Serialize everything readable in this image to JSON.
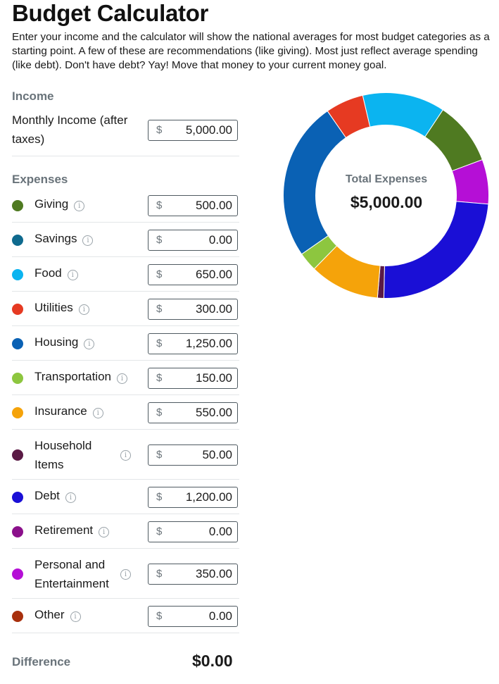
{
  "title": "Budget Calculator",
  "intro": "Enter your income and the calculator will show the national averages for most budget categories as a starting point. A few of these are recommendations (like giving). Most just reflect average spending (like debt). Don't have debt? Yay! Move that money to your current money goal.",
  "income": {
    "section_label": "Income",
    "label": "Monthly Income (after taxes)",
    "currency": "$",
    "value": "5,000.00"
  },
  "expenses": {
    "section_label": "Expenses",
    "info_glyph": "i",
    "items": [
      {
        "label": "Giving",
        "value": "500.00",
        "amount": 500,
        "color": "#4f7a21"
      },
      {
        "label": "Savings",
        "value": "0.00",
        "amount": 0,
        "color": "#0f6a8e"
      },
      {
        "label": "Food",
        "value": "650.00",
        "amount": 650,
        "color": "#0bb4f0"
      },
      {
        "label": "Utilities",
        "value": "300.00",
        "amount": 300,
        "color": "#e63a22"
      },
      {
        "label": "Housing",
        "value": "1,250.00",
        "amount": 1250,
        "color": "#0a61b4"
      },
      {
        "label": "Transportation",
        "value": "150.00",
        "amount": 150,
        "color": "#8dc63f"
      },
      {
        "label": "Insurance",
        "value": "550.00",
        "amount": 550,
        "color": "#f5a30a"
      },
      {
        "label": "Household Items",
        "value": "50.00",
        "amount": 50,
        "color": "#5a1a45"
      },
      {
        "label": "Debt",
        "value": "1,200.00",
        "amount": 1200,
        "color": "#1a0fd6"
      },
      {
        "label": "Retirement",
        "value": "0.00",
        "amount": 0,
        "color": "#8b108b"
      },
      {
        "label": "Personal and Entertainment",
        "value": "350.00",
        "amount": 350,
        "color": "#b50fd6"
      },
      {
        "label": "Other",
        "value": "0.00",
        "amount": 0,
        "color": "#a8300d"
      }
    ]
  },
  "difference": {
    "label": "Difference",
    "value": "$0.00"
  },
  "chart": {
    "total_label": "Total Expenses",
    "total_value": "$5,000.00"
  },
  "chart_data": {
    "type": "pie",
    "donut": true,
    "categories": [
      "Giving",
      "Savings",
      "Food",
      "Utilities",
      "Housing",
      "Transportation",
      "Insurance",
      "Household Items",
      "Debt",
      "Retirement",
      "Personal and Entertainment",
      "Other"
    ],
    "values": [
      500,
      0,
      650,
      300,
      1250,
      150,
      550,
      50,
      1200,
      0,
      350,
      0
    ],
    "slice_order_clockwise_from_top": [
      "Food",
      "Giving",
      "Personal and Entertainment",
      "Debt",
      "Household Items",
      "Insurance",
      "Transportation",
      "Housing",
      "Utilities"
    ],
    "colors": {
      "Giving": "#4f7a21",
      "Food": "#0bb4f0",
      "Utilities": "#e63a22",
      "Housing": "#0a61b4",
      "Transportation": "#8dc63f",
      "Insurance": "#f5a30a",
      "Household Items": "#5a1a45",
      "Debt": "#1a0fd6",
      "Personal and Entertainment": "#b50fd6"
    },
    "title": "",
    "center_label": "Total Expenses",
    "center_value": "$5,000.00"
  }
}
